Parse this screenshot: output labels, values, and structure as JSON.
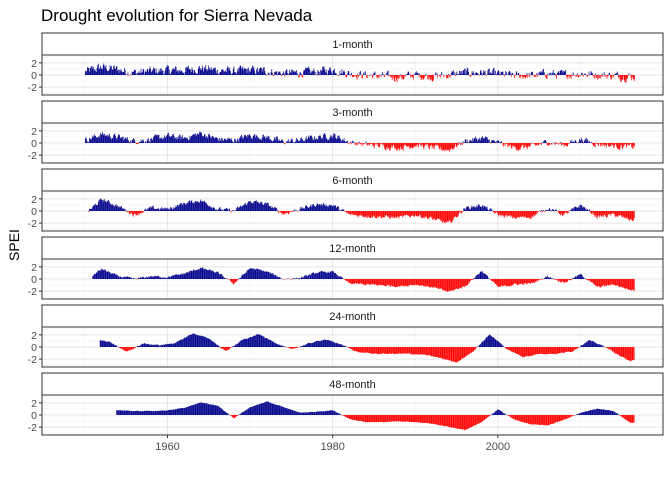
{
  "chart_data": {
    "type": "bar",
    "title": "Drought evolution for Sierra Nevada",
    "xlabel": "",
    "ylabel": "SPEI",
    "xlim": [
      1944.8,
      2020
    ],
    "ylim": [
      -3.3,
      3.3
    ],
    "x_ticks": [
      1960,
      1980,
      2000
    ],
    "y_ticks": [
      -2,
      0,
      2
    ],
    "y_tick_labels": [
      "-2",
      "0",
      "2"
    ],
    "grid": true,
    "colors": {
      "positive": "#00008B",
      "negative": "#FF0000"
    },
    "panels": [
      {
        "name": "1-month",
        "start": 1950.0,
        "end": 2016.5,
        "x": [
          1950,
          1952,
          1954,
          1956,
          1958,
          1960,
          1962,
          1964,
          1966,
          1968,
          1970,
          1972,
          1974,
          1976,
          1978,
          1980,
          1982,
          1984,
          1986,
          1988,
          1990,
          1992,
          1994,
          1996,
          1998,
          2000,
          2002,
          2004,
          2006,
          2008,
          2010,
          2012,
          2014,
          2016
        ],
        "env": [
          0.4,
          1.0,
          0.7,
          0.3,
          0.5,
          0.6,
          0.6,
          0.9,
          0.6,
          0.5,
          0.6,
          0.5,
          0.2,
          0.3,
          0.4,
          0.7,
          0.2,
          0.0,
          -0.2,
          -0.3,
          0.0,
          -0.2,
          0.0,
          0.3,
          0.3,
          0.1,
          -0.1,
          -0.1,
          0.2,
          0.0,
          0.2,
          0.0,
          -0.1,
          -0.2
        ],
        "amp": 1.3,
        "noise": 1.25,
        "bar_w": 0.085
      },
      {
        "name": "3-month",
        "start": 1950.0,
        "end": 2016.5,
        "x": [
          1950,
          1952,
          1954,
          1956,
          1958,
          1960,
          1962,
          1964,
          1966,
          1968,
          1970,
          1972,
          1974,
          1976,
          1978,
          1980,
          1982,
          1984,
          1986,
          1988,
          1990,
          1992,
          1994,
          1996,
          1998,
          2000,
          2002,
          2004,
          2006,
          2008,
          2010,
          2012,
          2014,
          2016
        ],
        "env": [
          0.3,
          0.9,
          0.6,
          0.2,
          0.4,
          0.7,
          0.5,
          1.0,
          0.4,
          0.3,
          0.8,
          0.6,
          0.1,
          0.3,
          0.6,
          0.8,
          0.1,
          -0.2,
          -0.3,
          -0.5,
          -0.2,
          -0.5,
          -0.7,
          0.2,
          0.5,
          0.0,
          -0.5,
          -0.4,
          0.1,
          -0.2,
          0.4,
          -0.1,
          -0.3,
          -0.4
        ],
        "amp": 1.6,
        "noise": 0.85,
        "bar_w": 0.085
      },
      {
        "name": "6-month",
        "start": 1950.4,
        "end": 2016.5,
        "x": [
          1950,
          1952,
          1954,
          1956,
          1958,
          1960,
          1962,
          1964,
          1966,
          1968,
          1970,
          1972,
          1974,
          1976,
          1978,
          1980,
          1982,
          1984,
          1986,
          1988,
          1990,
          1992,
          1994,
          1996,
          1998,
          2000,
          2002,
          2004,
          2006,
          2008,
          2010,
          2012,
          2014,
          2016
        ],
        "env": [
          -0.3,
          1.2,
          0.5,
          -0.4,
          0.3,
          0.2,
          0.8,
          1.1,
          0.2,
          0.0,
          1.0,
          0.7,
          -0.3,
          0.2,
          0.7,
          0.6,
          -0.4,
          -0.5,
          -0.6,
          -0.7,
          -0.4,
          -0.8,
          -1.3,
          0.3,
          0.6,
          -0.4,
          -0.7,
          -0.6,
          0.3,
          -0.4,
          0.6,
          -0.6,
          -0.4,
          -0.9
        ],
        "amp": 1.6,
        "noise": 0.55,
        "bar_w": 0.085
      },
      {
        "name": "12-month",
        "start": 1950.9,
        "end": 2016.5,
        "x": [
          1950,
          1952,
          1954,
          1956,
          1958,
          1960,
          1962,
          1964,
          1966,
          1968,
          1970,
          1972,
          1974,
          1976,
          1978,
          1980,
          1982,
          1984,
          1986,
          1988,
          1990,
          1992,
          1994,
          1996,
          1998,
          2000,
          2002,
          2004,
          2006,
          2008,
          2010,
          2012,
          2014,
          2016
        ],
        "env": [
          -0.2,
          1.1,
          0.3,
          0.0,
          0.3,
          0.2,
          0.6,
          1.2,
          0.7,
          -0.5,
          1.2,
          0.8,
          0.0,
          0.1,
          0.7,
          0.8,
          -0.5,
          -0.6,
          -0.7,
          -0.8,
          -0.6,
          -0.9,
          -1.4,
          -0.8,
          0.9,
          -0.9,
          -0.6,
          -0.5,
          0.3,
          -0.4,
          0.5,
          -0.9,
          -0.6,
          -1.2
        ],
        "amp": 1.5,
        "noise": 0.3,
        "bar_w": 0.085
      },
      {
        "name": "24-month",
        "start": 1951.8,
        "end": 2016.5,
        "x": [
          1951,
          1953,
          1955,
          1957,
          1959,
          1961,
          1963,
          1965,
          1967,
          1969,
          1971,
          1973,
          1975,
          1977,
          1979,
          1981,
          1983,
          1985,
          1987,
          1989,
          1991,
          1993,
          1995,
          1997,
          1999,
          2001,
          2003,
          2005,
          2007,
          2009,
          2011,
          2013,
          2015,
          2016
        ],
        "env": [
          1.0,
          0.6,
          -0.6,
          0.4,
          0.2,
          0.5,
          1.6,
          1.0,
          -0.5,
          0.8,
          1.5,
          0.5,
          -0.3,
          0.4,
          0.9,
          0.3,
          -0.6,
          -0.8,
          -0.8,
          -0.8,
          -0.9,
          -1.3,
          -1.8,
          -0.5,
          1.5,
          -0.2,
          -1.2,
          -0.8,
          -0.8,
          -0.5,
          0.8,
          0.0,
          -1.2,
          -1.6
        ],
        "amp": 1.4,
        "noise": 0.15,
        "bar_w": 0.085
      },
      {
        "name": "48-month",
        "start": 1953.8,
        "end": 2016.5,
        "x": [
          1954,
          1956,
          1958,
          1960,
          1962,
          1964,
          1966,
          1968,
          1970,
          1972,
          1974,
          1976,
          1978,
          1980,
          1982,
          1984,
          1986,
          1988,
          1990,
          1992,
          1994,
          1996,
          1998,
          2000,
          2002,
          2004,
          2006,
          2008,
          2010,
          2012,
          2014,
          2016
        ],
        "env": [
          0.6,
          0.5,
          0.5,
          0.6,
          0.9,
          1.6,
          1.2,
          -0.4,
          1.0,
          1.7,
          1.0,
          0.3,
          0.4,
          0.6,
          -0.5,
          -0.9,
          -0.9,
          -0.8,
          -0.9,
          -1.1,
          -1.5,
          -1.9,
          -0.9,
          0.7,
          -0.6,
          -1.2,
          -1.3,
          -0.6,
          0.3,
          0.8,
          0.5,
          -1.0
        ],
        "amp": 1.3,
        "noise": 0.08,
        "bar_w": 0.085
      }
    ]
  }
}
